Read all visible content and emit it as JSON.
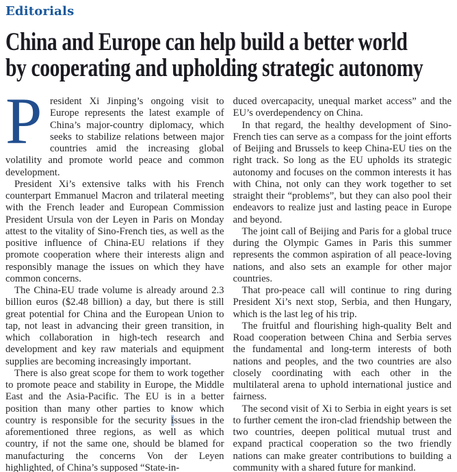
{
  "section": {
    "label": "Editorials"
  },
  "headline": {
    "line1": "China and Europe can help build a better world",
    "line2": "by cooperating and upholding strategic autonomy"
  },
  "article": {
    "dropcap": "P",
    "left_column": {
      "p1": "resident Xi Jinping’s ongoing visit to Europe represents the latest example of China’s major-country diplomacy, which seeks to stabilize relations between major countries amid the increasing global volatility and promote world peace and common development.",
      "p2": "President Xi’s extensive talks with his French counterpart Emmanuel Macron and trilateral meeting with the French leader and European Commission President Ursula von der Leyen in Paris on Monday attest to the vitality of Sino-French ties, as well as the positive influence of China-EU relations if they promote cooperation where their interests align and responsibly manage the issues on which they have common concerns.",
      "p3": "The China-EU trade volume is already around 2.3 billion euros ($2.48 billion) a day, but there is still great potential for China and the European Union to tap, not least in advancing their green transition, in which collaboration in high-tech research and development and key raw materials and equipment supplies are becoming increasingly important.",
      "p4_before": "There is also great scope for them to work together to promote peace and stability in Europe, the Middle East and the Asia-Pacific. The EU is in a better position than many other parties to know which country is responsible for the security ",
      "p4_highlight": "i",
      "p4_after": "ssues in the aforementioned three regions, as well as which country, if not the same one, should be blamed for manufacturing the concerns Von der Leyen highlighted, of China’s supposed “State-in-"
    },
    "right_column": {
      "p1": "duced overcapacity, unequal market access” and the EU’s overdependency on China.",
      "p2": "In that regard, the healthy development of Sino-French ties can serve as a compass for the joint efforts of Beijing and Brussels to keep China-EU ties on the right track. So long as the EU upholds its strategic autonomy and focuses on the common interests it has with China, not only can they work together to set straight their “problems”, but they can also pool their endeavors to realize just and lasting peace in Europe and beyond.",
      "p3": "The joint call of Beijing and Paris for a global truce during the Olympic Games in Paris this summer represents the common aspiration of all peace-loving nations, and also sets an example for other major countries.",
      "p4": "That pro-peace call will continue to ring during President Xi’s next stop, Serbia, and then Hungary, which is the last leg of his trip.",
      "p5": "The fruitful and flourishing high-quality Belt and Road cooperation between China and Serbia serves the fundamental and long-term interests of both nations and peoples, and the two countries are also closely coordinating with each other in the multilateral arena to uphold international justice and fairness.",
      "p6": "The second visit of Xi to Serbia in eight years is set to further cement the iron-clad friendship between the two countries, deepen political mutual trust and expand practical cooperation so the two friendly nations can make greater contributions to building a community with a shared future for mankind."
    }
  },
  "colors": {
    "section_blue": "#1a599c",
    "headline_dark": "#1b1b22",
    "dropcap_blue": "#214e8e",
    "body_text": "#26262a",
    "selection_highlight": "#a9c6ec",
    "background": "#ffffff"
  }
}
